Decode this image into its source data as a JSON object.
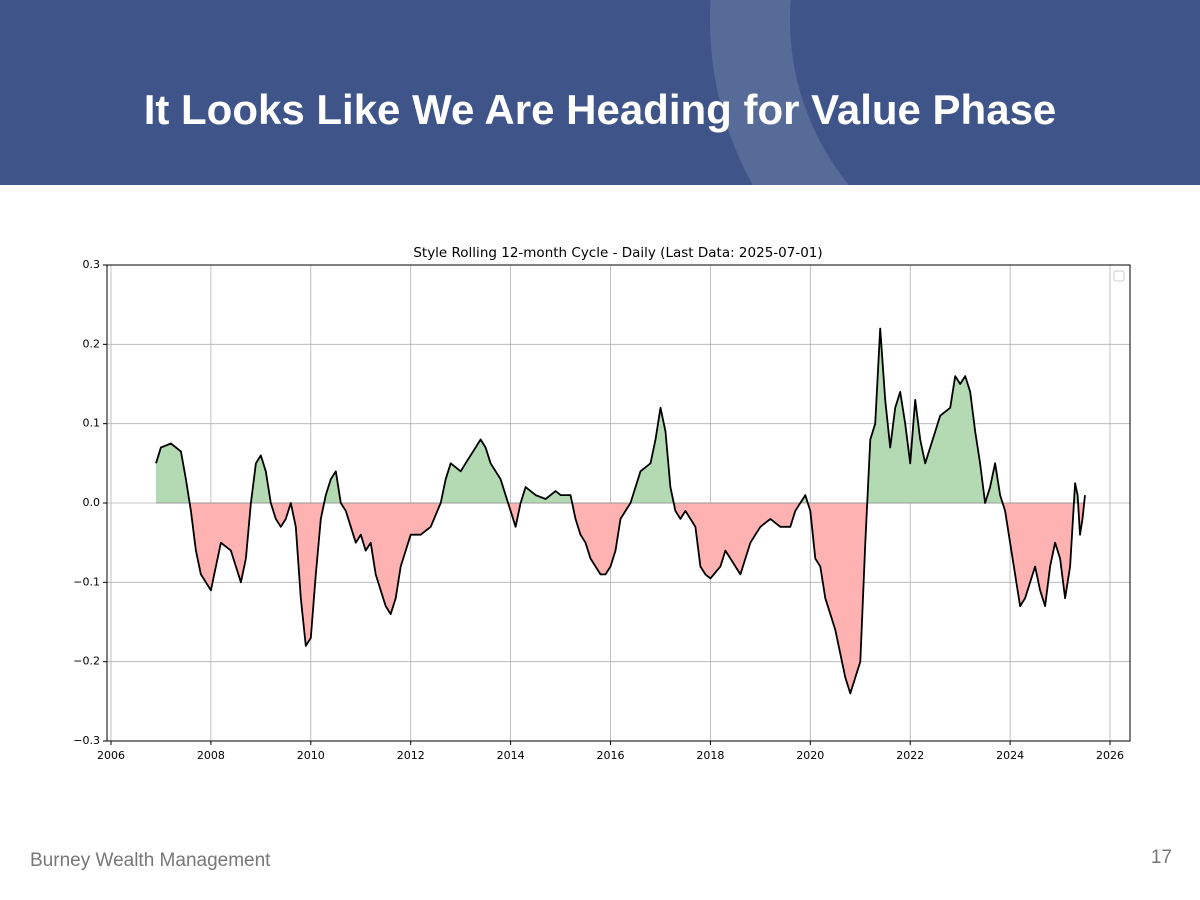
{
  "slide_title": "It Looks Like We Are Heading for Value Phase",
  "footer": "Burney Wealth Management",
  "page_number": "17",
  "chart_data": {
    "type": "line",
    "title": "Style Rolling 12-month Cycle - Daily (Last Data: 2025-07-01)",
    "x": [
      2006.9,
      2007.0,
      2007.2,
      2007.4,
      2007.5,
      2007.6,
      2007.7,
      2007.8,
      2007.9,
      2008.0,
      2008.1,
      2008.2,
      2008.4,
      2008.5,
      2008.6,
      2008.7,
      2008.8,
      2008.9,
      2009.0,
      2009.1,
      2009.2,
      2009.3,
      2009.4,
      2009.5,
      2009.6,
      2009.7,
      2009.8,
      2009.9,
      2010.0,
      2010.1,
      2010.2,
      2010.3,
      2010.4,
      2010.5,
      2010.6,
      2010.7,
      2010.8,
      2010.9,
      2011.0,
      2011.1,
      2011.2,
      2011.3,
      2011.5,
      2011.6,
      2011.7,
      2011.8,
      2011.9,
      2012.0,
      2012.2,
      2012.4,
      2012.6,
      2012.7,
      2012.8,
      2013.0,
      2013.1,
      2013.3,
      2013.4,
      2013.5,
      2013.6,
      2013.8,
      2013.9,
      2014.0,
      2014.1,
      2014.2,
      2014.3,
      2014.5,
      2014.7,
      2014.9,
      2015.0,
      2015.2,
      2015.3,
      2015.4,
      2015.5,
      2015.6,
      2015.8,
      2015.9,
      2016.0,
      2016.1,
      2016.2,
      2016.3,
      2016.4,
      2016.5,
      2016.6,
      2016.8,
      2016.9,
      2017.0,
      2017.1,
      2017.2,
      2017.3,
      2017.4,
      2017.5,
      2017.7,
      2017.8,
      2017.9,
      2018.0,
      2018.2,
      2018.3,
      2018.4,
      2018.6,
      2018.7,
      2018.8,
      2018.9,
      2019.0,
      2019.2,
      2019.4,
      2019.6,
      2019.7,
      2019.8,
      2019.9,
      2020.0,
      2020.1,
      2020.2,
      2020.3,
      2020.5,
      2020.6,
      2020.7,
      2020.8,
      2020.9,
      2021.0,
      2021.1,
      2021.2,
      2021.3,
      2021.4,
      2021.5,
      2021.6,
      2021.7,
      2021.8,
      2021.9,
      2022.0,
      2022.1,
      2022.2,
      2022.3,
      2022.5,
      2022.6,
      2022.8,
      2022.9,
      2023.0,
      2023.1,
      2023.2,
      2023.3,
      2023.4,
      2023.5,
      2023.6,
      2023.7,
      2023.8,
      2023.9,
      2024.0,
      2024.1,
      2024.2,
      2024.3,
      2024.4,
      2024.5,
      2024.6,
      2024.7,
      2024.8,
      2024.9,
      2025.0,
      2025.1,
      2025.2,
      2025.3,
      2025.35,
      2025.4,
      2025.45,
      2025.5
    ],
    "values": [
      0.05,
      0.07,
      0.075,
      0.065,
      0.03,
      -0.01,
      -0.06,
      -0.09,
      -0.1,
      -0.11,
      -0.08,
      -0.05,
      -0.06,
      -0.08,
      -0.1,
      -0.07,
      0.0,
      0.05,
      0.06,
      0.04,
      0.0,
      -0.02,
      -0.03,
      -0.02,
      0.0,
      -0.03,
      -0.12,
      -0.18,
      -0.17,
      -0.09,
      -0.02,
      0.01,
      0.03,
      0.04,
      0.0,
      -0.01,
      -0.03,
      -0.05,
      -0.04,
      -0.06,
      -0.05,
      -0.09,
      -0.13,
      -0.14,
      -0.12,
      -0.08,
      -0.06,
      -0.04,
      -0.04,
      -0.03,
      0.0,
      0.03,
      0.05,
      0.04,
      0.05,
      0.07,
      0.08,
      0.07,
      0.05,
      0.03,
      0.01,
      -0.01,
      -0.03,
      0.0,
      0.02,
      0.01,
      0.005,
      0.015,
      0.01,
      0.01,
      -0.02,
      -0.04,
      -0.05,
      -0.07,
      -0.09,
      -0.09,
      -0.08,
      -0.06,
      -0.02,
      -0.01,
      0.0,
      0.02,
      0.04,
      0.05,
      0.08,
      0.12,
      0.09,
      0.02,
      -0.01,
      -0.02,
      -0.01,
      -0.03,
      -0.08,
      -0.09,
      -0.095,
      -0.08,
      -0.06,
      -0.07,
      -0.09,
      -0.07,
      -0.05,
      -0.04,
      -0.03,
      -0.02,
      -0.03,
      -0.03,
      -0.01,
      0.0,
      0.01,
      -0.01,
      -0.07,
      -0.08,
      -0.12,
      -0.16,
      -0.19,
      -0.22,
      -0.24,
      -0.22,
      -0.2,
      -0.05,
      0.08,
      0.1,
      0.22,
      0.13,
      0.07,
      0.12,
      0.14,
      0.1,
      0.05,
      0.13,
      0.08,
      0.05,
      0.09,
      0.11,
      0.12,
      0.16,
      0.15,
      0.16,
      0.14,
      0.09,
      0.05,
      0.0,
      0.02,
      0.05,
      0.01,
      -0.01,
      -0.05,
      -0.09,
      -0.13,
      -0.12,
      -0.1,
      -0.08,
      -0.11,
      -0.13,
      -0.08,
      -0.05,
      -0.07,
      -0.12,
      -0.08,
      0.025,
      0.01,
      -0.04,
      -0.02,
      0.01
    ],
    "color": "#000000",
    "positive_color": "#b3dab3",
    "negative_color": "#ffb2b2",
    "xlim": [
      2005.92,
      2026.4
    ],
    "ylim": [
      -0.3,
      0.3
    ],
    "xticks": [
      2006,
      2008,
      2010,
      2012,
      2014,
      2016,
      2018,
      2020,
      2022,
      2024,
      2026
    ],
    "yticks": [
      {
        "value": -0.3,
        "label": "−0.3"
      },
      {
        "value": -0.2,
        "label": "−0.2"
      },
      {
        "value": -0.1,
        "label": "−0.1"
      },
      {
        "value": 0,
        "label": "0.0"
      },
      0.1,
      0.2,
      0.3
    ],
    "grid": true
  }
}
